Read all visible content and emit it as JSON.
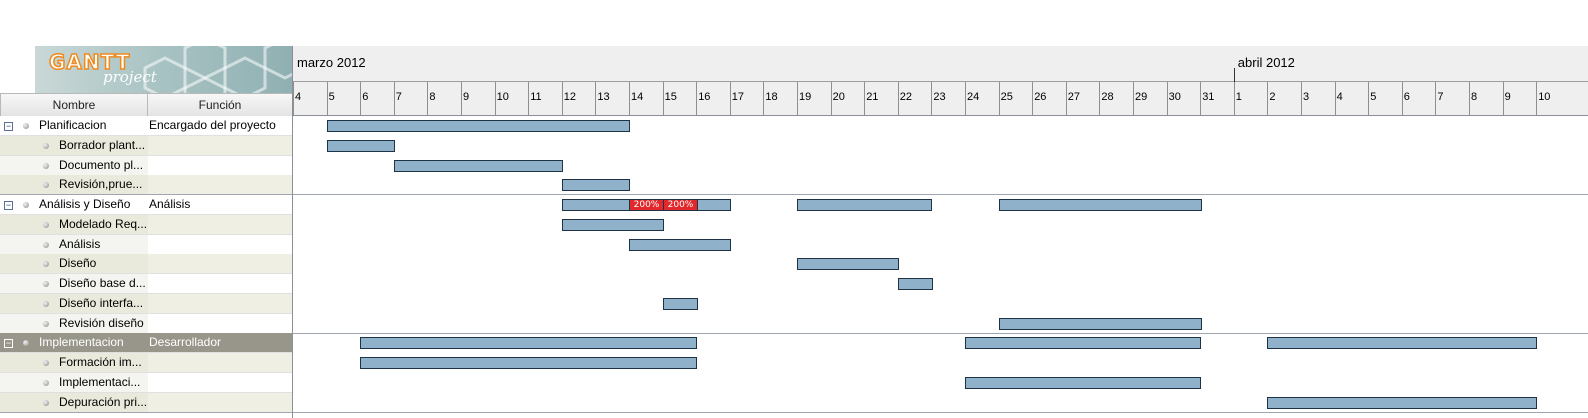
{
  "app": {
    "logo_main": "GANTT",
    "logo_sub": "project"
  },
  "table": {
    "col_name": "Nombre",
    "col_role": "Función"
  },
  "timeline": {
    "months": [
      {
        "label": "marzo 2012",
        "start_day_index": 0
      },
      {
        "label": "abril 2012",
        "start_day_index": 28
      }
    ],
    "days": [
      "4",
      "5",
      "6",
      "7",
      "8",
      "9",
      "10",
      "11",
      "12",
      "13",
      "14",
      "15",
      "16",
      "17",
      "18",
      "19",
      "20",
      "21",
      "22",
      "23",
      "24",
      "25",
      "26",
      "27",
      "28",
      "29",
      "30",
      "31",
      "1",
      "2",
      "3",
      "4",
      "5",
      "6",
      "7",
      "8",
      "9",
      "10"
    ]
  },
  "tasks": [
    {
      "name": "Planificacion",
      "role": "Encargado del proyecto",
      "level": 0,
      "bars": [
        [
          5,
          14
        ]
      ]
    },
    {
      "name": "Borrador plant...",
      "role": "",
      "level": 1,
      "bars": [
        [
          5,
          7
        ]
      ]
    },
    {
      "name": "Documento pl...",
      "role": "",
      "level": 1,
      "bars": [
        [
          7,
          12
        ]
      ]
    },
    {
      "name": "Revisión,prue...",
      "role": "",
      "level": 1,
      "bars": [
        [
          12,
          14
        ]
      ]
    },
    {
      "name": "Análisis y Diseño",
      "role": "Análisis",
      "level": 0,
      "bars": [
        [
          12,
          17
        ],
        [
          19,
          23
        ],
        [
          25,
          31
        ]
      ],
      "overload": [
        {
          "start": 14,
          "end": 15,
          "label": "200%"
        },
        {
          "start": 15,
          "end": 16,
          "label": "200%"
        }
      ]
    },
    {
      "name": "Modelado Req...",
      "role": "",
      "level": 1,
      "bars": [
        [
          12,
          15
        ]
      ]
    },
    {
      "name": "Análisis",
      "role": "",
      "level": 1,
      "bars": [
        [
          14,
          17
        ]
      ]
    },
    {
      "name": "Diseño",
      "role": "",
      "level": 1,
      "bars": [
        [
          19,
          22
        ]
      ]
    },
    {
      "name": "Diseño base d...",
      "role": "",
      "level": 1,
      "bars": [
        [
          22,
          23
        ]
      ]
    },
    {
      "name": "Diseño interfa...",
      "role": "",
      "level": 1,
      "bars": [
        [
          15,
          16
        ]
      ]
    },
    {
      "name": "Revisión diseño",
      "role": "",
      "level": 1,
      "bars": [
        [
          25,
          31
        ]
      ]
    },
    {
      "name": "Implementacion",
      "role": "Desarrollador",
      "level": 0,
      "selected": true,
      "bars": [
        [
          6,
          16
        ],
        [
          24,
          31
        ],
        [
          33,
          41
        ]
      ]
    },
    {
      "name": "Formación im...",
      "role": "",
      "level": 1,
      "bars": [
        [
          6,
          16
        ]
      ]
    },
    {
      "name": "Implementaci...",
      "role": "",
      "level": 1,
      "bars": [
        [
          24,
          31
        ]
      ]
    },
    {
      "name": "Depuración pri...",
      "role": "",
      "level": 1,
      "bars": [
        [
          33,
          41
        ]
      ]
    }
  ]
}
